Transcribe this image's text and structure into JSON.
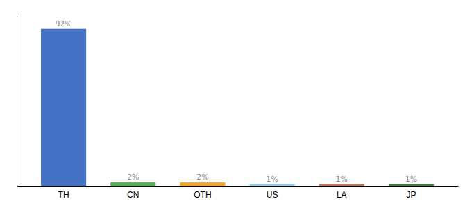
{
  "chart_data": {
    "type": "bar",
    "categories": [
      "TH",
      "CN",
      "OTH",
      "US",
      "LA",
      "JP"
    ],
    "values": [
      92,
      2,
      2,
      1,
      1,
      1
    ],
    "value_labels": [
      "92%",
      "2%",
      "2%",
      "1%",
      "1%",
      "1%"
    ],
    "colors": [
      "#4472c4",
      "#4caf50",
      "#f5a623",
      "#87ceeb",
      "#c0714f",
      "#3a7d44"
    ],
    "ylim": [
      0,
      100
    ],
    "data_labels": true,
    "tick_labels": "x"
  }
}
